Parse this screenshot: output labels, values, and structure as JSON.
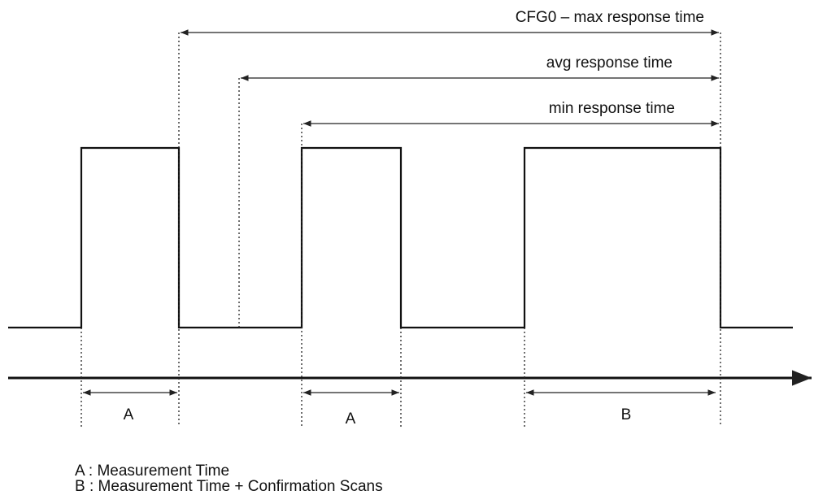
{
  "header": {
    "max_label": "CFG0 – max response time",
    "avg_label": "avg response time",
    "min_label": "min response time"
  },
  "intervals": [
    {
      "label": "A"
    },
    {
      "label": "A"
    },
    {
      "label": "B"
    }
  ],
  "legend": [
    "A : Measurement Time",
    "B : Measurement Time + Confirmation Scans"
  ]
}
